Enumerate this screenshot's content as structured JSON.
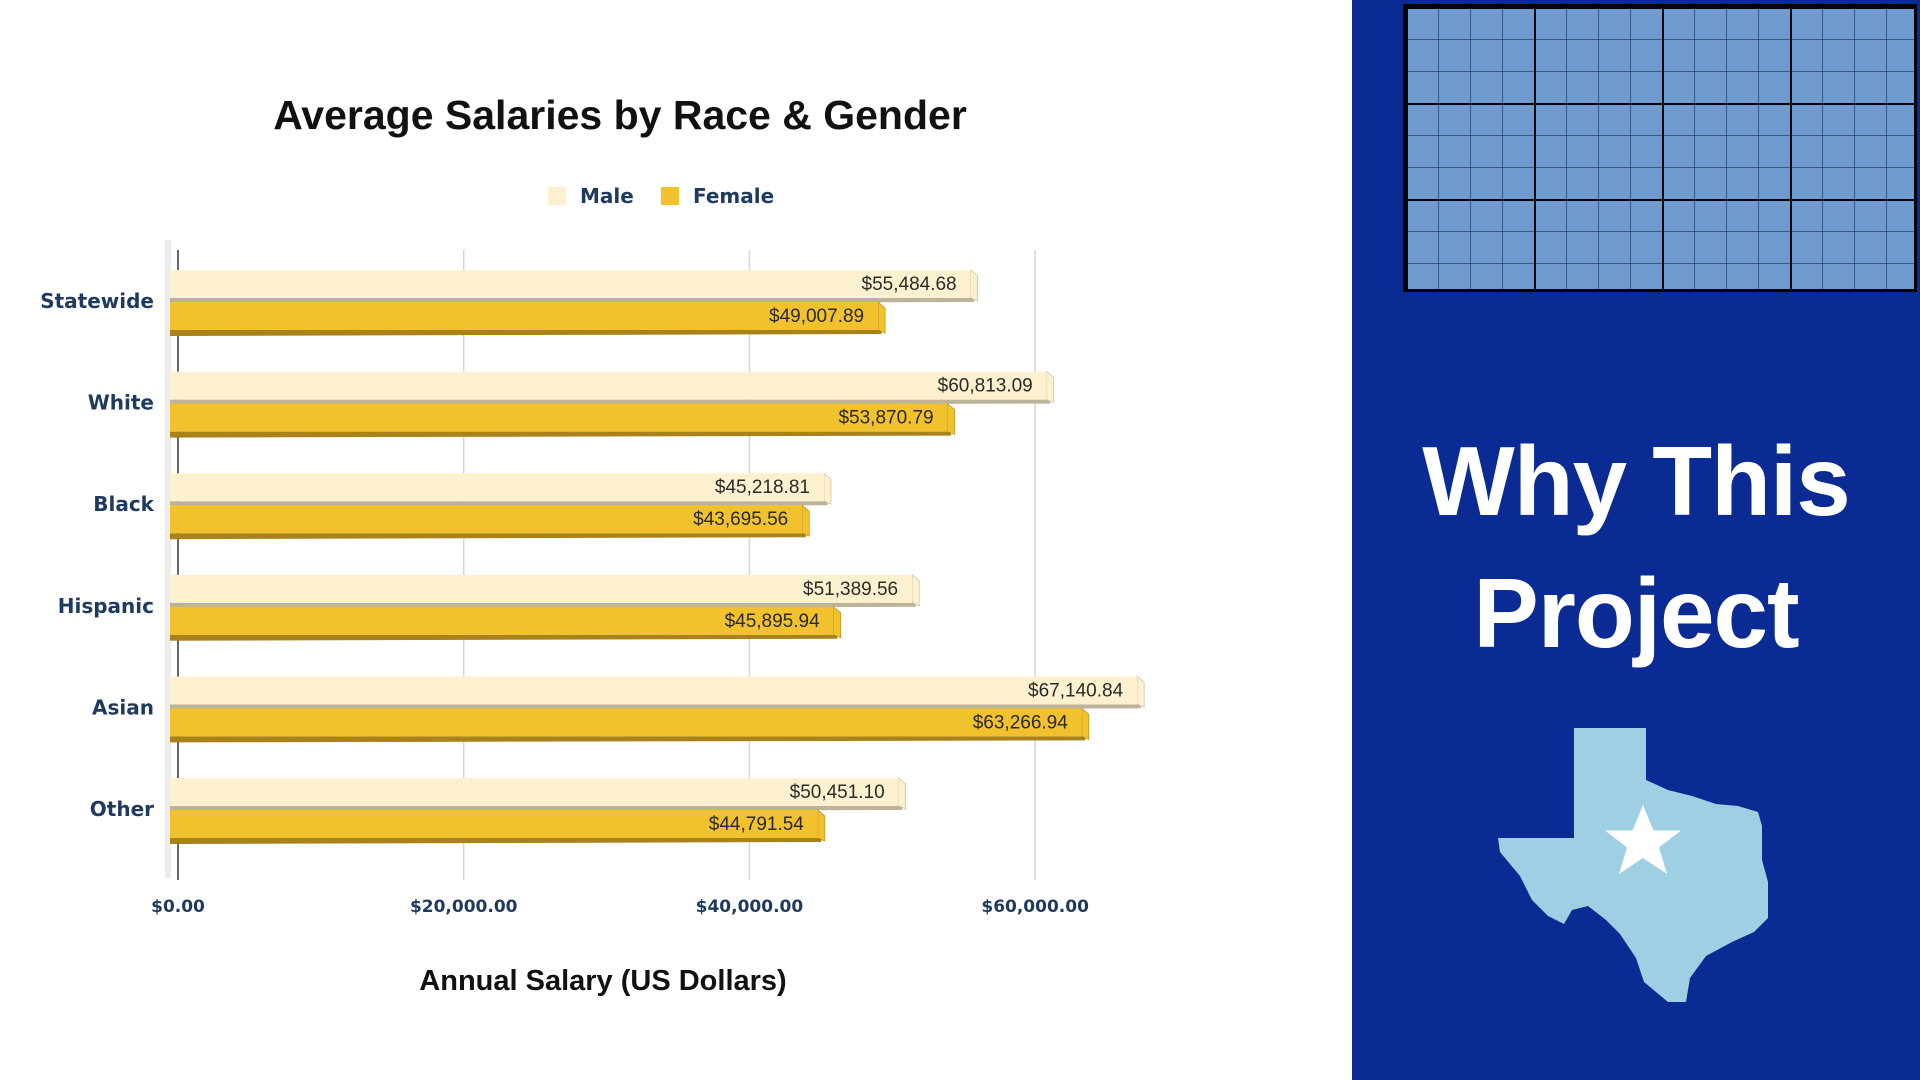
{
  "colors": {
    "male": "#fdf1cf",
    "male_shadow": "#bdb39a",
    "female": "#f2c12e",
    "female_shadow": "#a9821a",
    "gridline": "#d6d6d6",
    "panel_bg": "#0a2a94",
    "grid_block": "#6f9bd1",
    "texas": "#9ecfe3"
  },
  "chart_data": {
    "type": "bar",
    "orientation": "horizontal",
    "title": "Average Salaries by Race & Gender",
    "xlabel": "Annual Salary (US Dollars)",
    "ylabel": "",
    "categories": [
      "Statewide",
      "White",
      "Black",
      "Hispanic",
      "Asian",
      "Other"
    ],
    "series": [
      {
        "name": "Male",
        "values": [
          55484.68,
          60813.09,
          45218.81,
          51389.56,
          67140.84,
          50451.1
        ],
        "labels": [
          "$55,484.68",
          "$60,813.09",
          "$45,218.81",
          "$51,389.56",
          "$67,140.84",
          "$50,451.10"
        ]
      },
      {
        "name": "Female",
        "values": [
          49007.89,
          53870.79,
          43695.56,
          45895.94,
          63266.94,
          44791.54
        ],
        "labels": [
          "$49,007.89",
          "$53,870.79",
          "$43,695.56",
          "$45,895.94",
          "$63,266.94",
          "$44,791.54"
        ]
      }
    ],
    "xlim": [
      0,
      70000
    ],
    "x_ticks": [
      0,
      20000,
      40000,
      60000
    ],
    "x_tick_labels": [
      "$0.00",
      "$20,000.00",
      "$40,000.00",
      "$60,000.00"
    ],
    "grid": true,
    "legend": "top-center"
  },
  "panel": {
    "heading_line1": "Why This",
    "heading_line2": "Project",
    "star_icon": "star-icon",
    "map_icon": "texas-map-icon"
  }
}
